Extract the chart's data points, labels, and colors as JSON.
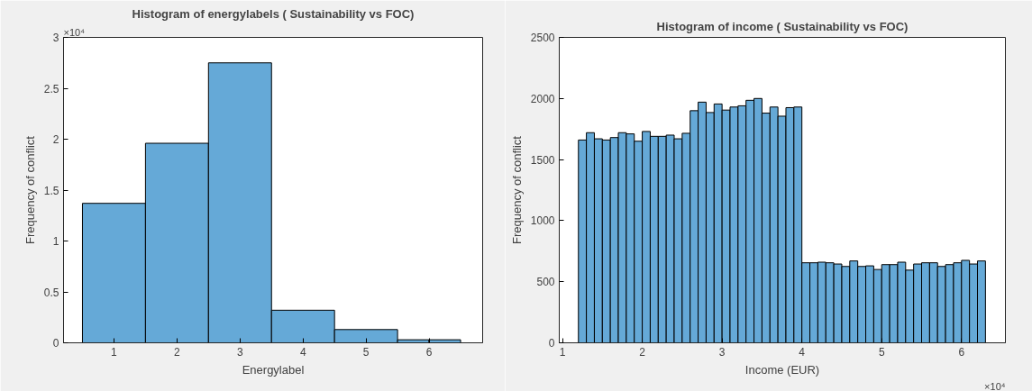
{
  "chart_data": [
    {
      "type": "histogram",
      "title": "Histogram of energylabels ( Sustainability vs FOC)",
      "xlabel": "Energylabel",
      "ylabel": "Frequency of conflict",
      "bins": [
        0.5,
        1.5,
        2.5,
        3.5,
        4.5,
        5.5,
        6.0,
        6.5
      ],
      "values": [
        1.37,
        1.96,
        2.75,
        0.32,
        0.13,
        0.03,
        0.03
      ],
      "color": "#65a9d7",
      "xlim": [
        0.2,
        6.85
      ],
      "ylim": [
        0,
        3
      ],
      "xticks": [
        1,
        2,
        3,
        4,
        5,
        6
      ],
      "yticks": [
        0,
        0.5,
        1,
        1.5,
        2,
        2.5,
        3
      ],
      "annotations": [
        "×10⁴"
      ],
      "grid": false
    },
    {
      "type": "histogram",
      "title": "Histogram of income ( Sustainability vs FOC)",
      "xlabel": "Income (EUR)",
      "ylabel": "Frequency of conflict",
      "bins": [
        1.2,
        1.3,
        1.4,
        1.5,
        1.6,
        1.7,
        1.8,
        1.9,
        2.0,
        2.1,
        2.2,
        2.3,
        2.4,
        2.5,
        2.6,
        2.7,
        2.8,
        2.9,
        3.0,
        3.1,
        3.2,
        3.3,
        3.4,
        3.5,
        3.6,
        3.7,
        3.8,
        3.9,
        4.0,
        4.1,
        4.2,
        4.3,
        4.4,
        4.5,
        4.6,
        4.7,
        4.8,
        4.9,
        5.0,
        5.1,
        5.2,
        5.3,
        5.4,
        5.5,
        5.6,
        5.7,
        5.8,
        5.9,
        6.0,
        6.1,
        6.2,
        6.3
      ],
      "values": [
        1660,
        1720,
        1670,
        1660,
        1680,
        1720,
        1710,
        1650,
        1730,
        1690,
        1690,
        1700,
        1670,
        1715,
        1900,
        1970,
        1885,
        1955,
        1905,
        1930,
        1940,
        1985,
        2000,
        1880,
        1930,
        1855,
        1925,
        1930,
        655,
        655,
        660,
        655,
        645,
        625,
        670,
        625,
        630,
        600,
        640,
        640,
        660,
        595,
        645,
        655,
        655,
        625,
        640,
        655,
        675,
        645,
        670
      ],
      "color": "#65a9d7",
      "xlim": [
        0.96,
        6.55
      ],
      "ylim": [
        0,
        2500
      ],
      "xticks": [
        1,
        2,
        3,
        4,
        5,
        6
      ],
      "yticks": [
        0,
        500,
        1000,
        1500,
        2000,
        2500
      ],
      "annotations": [
        "×10⁴"
      ],
      "grid": false
    }
  ]
}
